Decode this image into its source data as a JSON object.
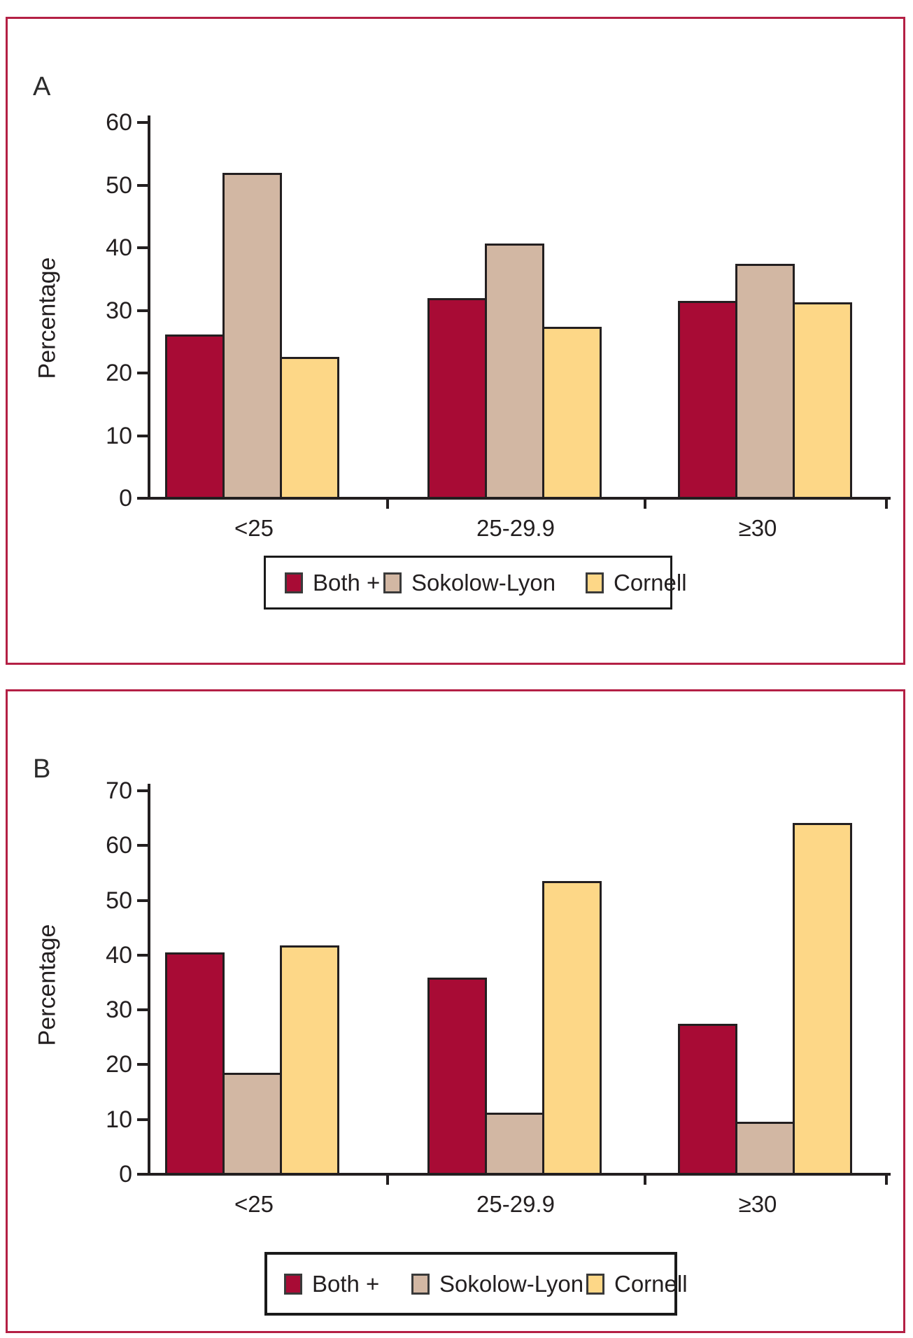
{
  "figure": {
    "panel_a_label": "A",
    "panel_b_label": "B"
  },
  "colors": {
    "both_plus": "#A80B35",
    "sokolow_lyon": "#D2B7A3",
    "cornell": "#FDD787",
    "frame_border": "#B42045",
    "axis": "#231F20"
  },
  "chart_data": [
    {
      "type": "bar",
      "panel": "A",
      "title": "",
      "xlabel": "",
      "ylabel": "Percentage",
      "categories": [
        "<25",
        "25-29.9",
        "≥30"
      ],
      "series": [
        {
          "name": "Both +",
          "color": "#A80B35",
          "values": [
            25.9,
            31.7,
            31.3
          ]
        },
        {
          "name": "Sokolow-Lyon",
          "color": "#D2B7A3",
          "values": [
            51.7,
            40.5,
            37.2
          ]
        },
        {
          "name": "Cornell",
          "color": "#FDD787",
          "values": [
            22.3,
            27.2,
            31.1
          ]
        }
      ],
      "ylim": [
        0,
        60
      ],
      "ytick_step": 10,
      "grid": false,
      "legend_position": "bottom"
    },
    {
      "type": "bar",
      "panel": "B",
      "title": "",
      "xlabel": "",
      "ylabel": "Percentage",
      "categories": [
        "<25",
        "25-29.9",
        "≥30"
      ],
      "series": [
        {
          "name": "Both +",
          "color": "#A80B35",
          "values": [
            40.2,
            35.6,
            27.2
          ]
        },
        {
          "name": "Sokolow-Lyon",
          "color": "#D2B7A3",
          "values": [
            18.3,
            11.0,
            9.3
          ]
        },
        {
          "name": "Cornell",
          "color": "#FDD787",
          "values": [
            41.5,
            53.3,
            63.8
          ]
        }
      ],
      "ylim": [
        0,
        70
      ],
      "ytick_step": 10,
      "grid": false,
      "legend_position": "bottom"
    }
  ]
}
